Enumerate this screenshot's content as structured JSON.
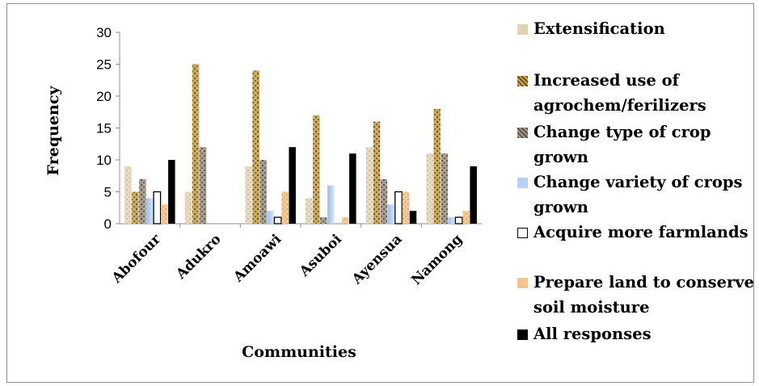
{
  "chart_data": {
    "type": "bar",
    "title": "",
    "xlabel": "Communities",
    "ylabel": "Frequency",
    "ylim": [
      0,
      30
    ],
    "yticks": [
      0,
      5,
      10,
      15,
      20,
      25,
      30
    ],
    "grid": false,
    "legend_position": "right",
    "categories": [
      "Abofour",
      "Adukro",
      "Amoawi",
      "Asuboi",
      "Ayensua",
      "Namong"
    ],
    "series": [
      {
        "name": "Extensification",
        "color": "#dfd3b8",
        "values": [
          9,
          5,
          9,
          4,
          12,
          11
        ]
      },
      {
        "name": "Increased use of agrochem/ferilizers",
        "color": "#bd9a50",
        "values": [
          5,
          25,
          24,
          17,
          16,
          18
        ]
      },
      {
        "name": "Change type of crop grown",
        "color": "#958a7e",
        "values": [
          7,
          12,
          10,
          1,
          7,
          11
        ]
      },
      {
        "name": "Change variety of crops grown",
        "color": "#b8d0f2",
        "values": [
          4,
          0,
          2,
          6,
          3,
          1
        ]
      },
      {
        "name": "Acquire more farmlands",
        "color": "#ffffff",
        "values": [
          5,
          0,
          1,
          0,
          5,
          1
        ]
      },
      {
        "name": "Prepare land to conserve soil moisture",
        "color": "#f2c590",
        "values": [
          3,
          0,
          5,
          1,
          5,
          2
        ]
      },
      {
        "name": "All responses",
        "color": "#000000",
        "values": [
          10,
          0,
          12,
          11,
          2,
          9
        ]
      }
    ]
  }
}
